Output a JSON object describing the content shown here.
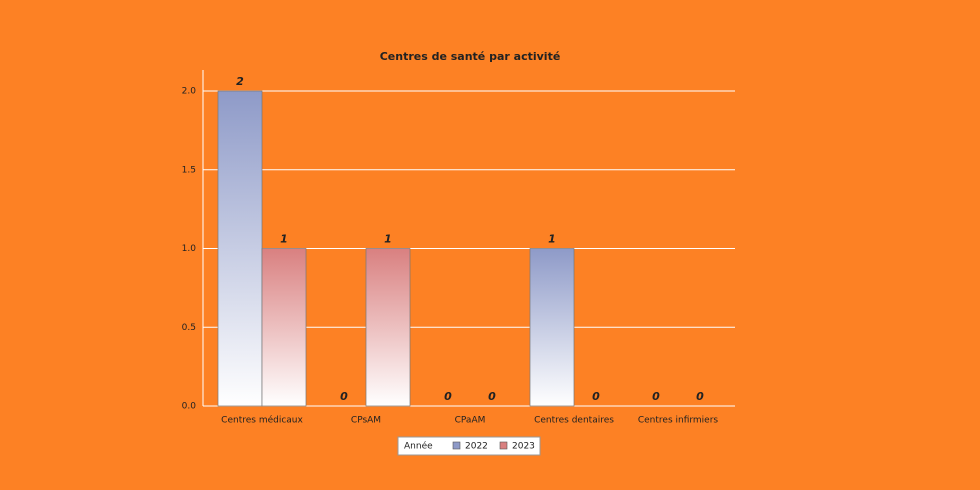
{
  "chart_data": {
    "type": "bar",
    "title": "Centres de santé par activité",
    "categories": [
      "Centres médicaux",
      "CPsAM",
      "CPaAM",
      "Centres dentaires",
      "Centres infirmiers"
    ],
    "series": [
      {
        "name": "2022",
        "color": "#8e9ac8",
        "values": [
          2,
          0,
          0,
          1,
          0
        ]
      },
      {
        "name": "2023",
        "color": "#d98080",
        "values": [
          1,
          1,
          0,
          0,
          0
        ]
      }
    ],
    "legend_title": "Année",
    "ylim": [
      0,
      2
    ],
    "yticks": [
      {
        "value": 0,
        "label": "0.0"
      },
      {
        "value": 0.5,
        "label": "0.5"
      },
      {
        "value": 1,
        "label": "1.0"
      },
      {
        "value": 1.5,
        "label": "1.5"
      },
      {
        "value": 2,
        "label": "2.0"
      }
    ],
    "grid": true,
    "legend": "bottom"
  }
}
